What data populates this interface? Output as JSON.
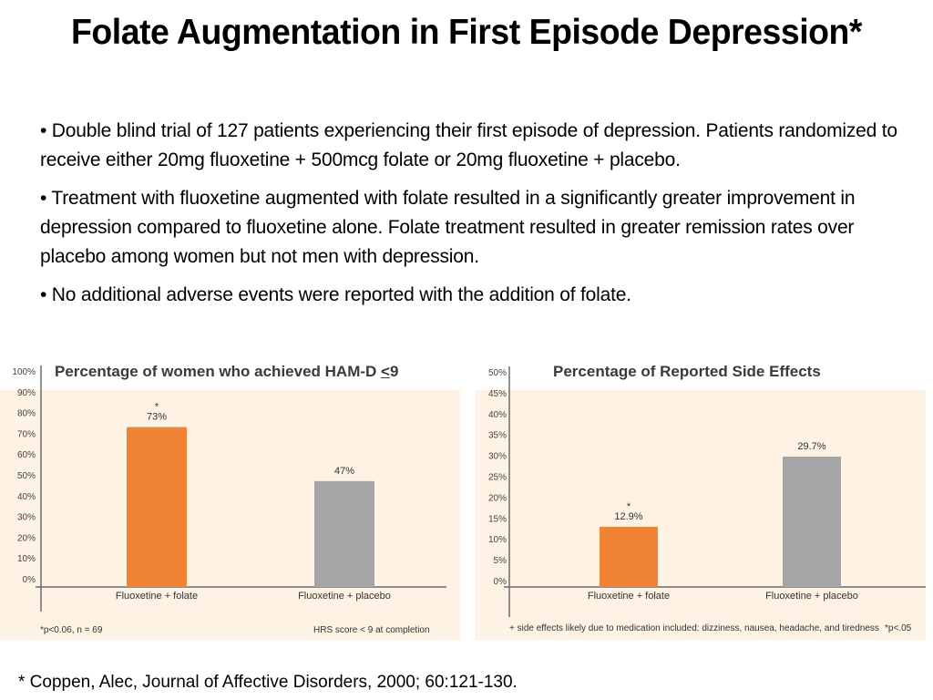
{
  "slide": {
    "title": "Folate Augmentation in First Episode Depression*",
    "bullets": [
      "• Double blind trial of 127 patients experiencing their first episode of depression. Patients randomized to receive either 20mg fluoxetine + 500mcg folate or 20mg fluoxetine + placebo.",
      "• Treatment with fluoxetine augmented with folate resulted in a significantly greater improvement in depression compared to fluoxetine alone. Folate treatment resulted in greater remission rates over placebo among women but not men with depression.",
      "• No additional adverse events were reported with the addition of folate."
    ],
    "citation": "* Coppen, Alec, Journal of Affective Disorders, 2000; 60:121-130."
  },
  "colors": {
    "plot_bg": "#fdf2e3",
    "folate_bar": "#f08434",
    "placebo_bar": "#a6a6a8",
    "axis": "#6d6d6d"
  },
  "chart_data": [
    {
      "type": "bar",
      "title_prefix": "Percentage of women who achieved HAM-D ",
      "title_symbol": "<",
      "title_suffix": "9",
      "categories": [
        "Fluoxetine + folate",
        "Fluoxetine + placebo"
      ],
      "values": [
        73,
        47
      ],
      "value_labels": [
        "73%",
        "47%"
      ],
      "significance": [
        "*",
        ""
      ],
      "yticks": [
        "0%",
        "10%",
        "20%",
        "30%",
        "40%",
        "50%",
        "60%",
        "70%",
        "80%",
        "90%",
        "100%"
      ],
      "ylim": [
        0,
        100
      ],
      "xlabel": "",
      "ylabel": "",
      "footnote_left": "*p<0.06, n = 69",
      "footnote_right": "HRS score < 9 at completion"
    },
    {
      "type": "bar",
      "title": "Percentage of Reported Side Effects",
      "categories": [
        "Fluoxetine + folate",
        "Fluoxetine + placebo"
      ],
      "values": [
        12.9,
        29.7
      ],
      "value_labels": [
        "12.9%",
        "29.7%"
      ],
      "significance": [
        "*",
        ""
      ],
      "yticks": [
        "0%",
        "5%",
        "10%",
        "15%",
        "20%",
        "25%",
        "30%",
        "35%",
        "40%",
        "45%",
        "50%"
      ],
      "ylim": [
        0,
        50
      ],
      "xlabel": "",
      "ylabel": "",
      "footnote_left": "+  side effects likely due to medication included:  dizziness, nausea, headache, and tiredness",
      "footnote_right": "*p<.05"
    }
  ]
}
